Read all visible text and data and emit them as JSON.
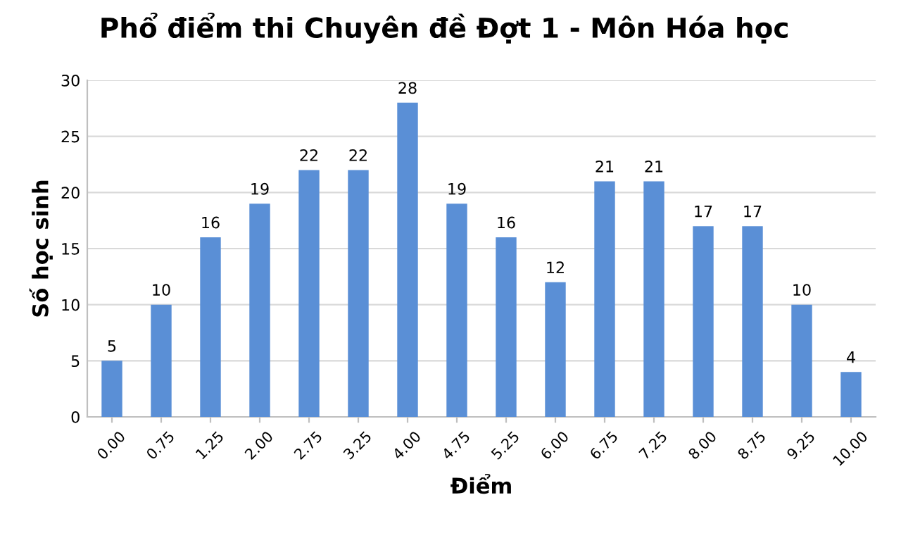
{
  "chart_data": {
    "type": "bar",
    "title": "Phổ điểm thi Chuyên đề Đợt 1 - Môn Hóa học",
    "xlabel": "Điểm",
    "ylabel": "Số học sinh",
    "categories": [
      "0.00",
      "0.75",
      "1.25",
      "2.00",
      "2.75",
      "3.25",
      "4.00",
      "4.75",
      "5.25",
      "6.00",
      "6.75",
      "7.25",
      "8.00",
      "8.75",
      "9.25",
      "10.00"
    ],
    "values": [
      5,
      10,
      16,
      19,
      22,
      22,
      28,
      19,
      16,
      12,
      21,
      21,
      17,
      17,
      10,
      4
    ],
    "color": "#5a8fd6",
    "ylim": [
      0,
      30
    ],
    "yticks": [
      0,
      5,
      10,
      15,
      20,
      25,
      30
    ],
    "grid": "y",
    "data_labels": true
  }
}
